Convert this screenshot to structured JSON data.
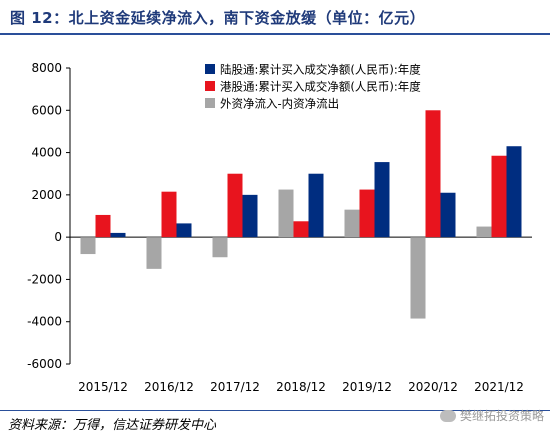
{
  "title": "图 12：北上资金延续净流入，南下资金放缓（单位：亿元）",
  "source": "资料来源：万得，信达证券研发中心",
  "watermark": "樊继拓投资策略",
  "colors": {
    "northbound": "#002D80",
    "southbound": "#E8141E",
    "net": "#A6A6A6",
    "axis": "#000000"
  },
  "chart_data": {
    "type": "bar",
    "categories": [
      "2015/12",
      "2016/12",
      "2017/12",
      "2018/12",
      "2019/12",
      "2020/12",
      "2021/12"
    ],
    "series": [
      {
        "name": "陆股通:累计买入成交净额(人民币):年度",
        "values": [
          200,
          650,
          2000,
          3000,
          3550,
          2100,
          4300
        ]
      },
      {
        "name": "港股通:累计买入成交净额(人民币):年度",
        "values": [
          1050,
          2150,
          3000,
          750,
          2250,
          6000,
          3850
        ]
      },
      {
        "name": "外资净流入-内资净流出",
        "values": [
          -800,
          -1500,
          -950,
          2250,
          1300,
          -3850,
          500
        ]
      }
    ],
    "ylim": [
      -6000,
      8000
    ],
    "yticks": [
      -6000,
      -4000,
      -2000,
      0,
      2000,
      4000,
      6000,
      8000
    ],
    "legend_position": "top-left"
  }
}
